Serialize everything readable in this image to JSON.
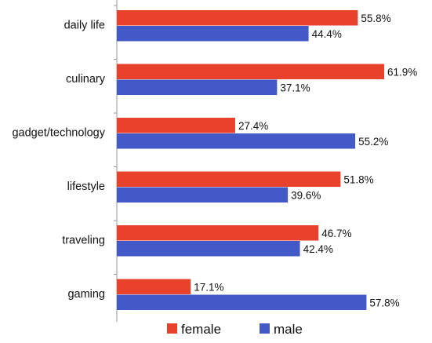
{
  "chart_data": {
    "type": "bar",
    "orientation": "horizontal",
    "categories": [
      "daily life",
      "culinary",
      "gadget/technology",
      "lifestyle",
      "traveling",
      "gaming"
    ],
    "series": [
      {
        "name": "female",
        "values": [
          55.8,
          61.9,
          27.4,
          51.8,
          46.7,
          17.1
        ],
        "labels": [
          "55.8%",
          "61.9%",
          "27.4%",
          "51.8%",
          "46.7%",
          "17.1%"
        ]
      },
      {
        "name": "male",
        "values": [
          44.4,
          37.1,
          55.2,
          39.6,
          42.4,
          57.8
        ],
        "labels": [
          "44.4%",
          "37.1%",
          "55.2%",
          "39.6%",
          "42.4%",
          "57.8%"
        ]
      }
    ],
    "title": "",
    "xlabel": "",
    "ylabel": "",
    "xlim": [
      0,
      65
    ],
    "grid": false,
    "legend_position": "bottom-center",
    "colors": {
      "female": "#e8412c",
      "male": "#4459c8",
      "axis": "#9a9a9a"
    }
  }
}
